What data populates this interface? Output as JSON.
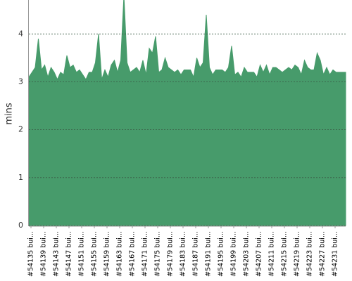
{
  "chart_data": {
    "type": "area",
    "y_label": "mins",
    "categories": [
      "#54135 bui...",
      null,
      null,
      null,
      "#54139 bui...",
      null,
      null,
      null,
      "#54143 bui...",
      null,
      null,
      null,
      "#54147 bui...",
      null,
      null,
      null,
      "#54151 bui...",
      null,
      null,
      null,
      "#54155 bui...",
      null,
      null,
      null,
      "#54159 bui...",
      null,
      null,
      null,
      "#54163 bui...",
      null,
      null,
      null,
      "#54167 bui...",
      null,
      null,
      null,
      "#54171 bui...",
      null,
      null,
      null,
      "#54175 bui...",
      null,
      null,
      null,
      "#54179 bui...",
      null,
      null,
      null,
      "#54183 bui...",
      null,
      null,
      null,
      "#54187 bui...",
      null,
      null,
      null,
      "#54191 bui...",
      null,
      null,
      null,
      "#54195 bui...",
      null,
      null,
      null,
      "#54199 bui...",
      null,
      null,
      null,
      "#54203 bui...",
      null,
      null,
      null,
      "#54207 bui...",
      null,
      null,
      null,
      "#54211 bui...",
      null,
      null,
      null,
      "#54215 bui...",
      null,
      null,
      null,
      "#54219 bui...",
      null,
      null,
      null,
      "#54223 bui...",
      null,
      null,
      null,
      "#54227 bui...",
      null,
      null,
      null,
      "#54231 bui...",
      null,
      null,
      null,
      null
    ],
    "values": [
      3.1,
      3.2,
      3.3,
      3.9,
      3.25,
      3.35,
      3.1,
      3.3,
      3.2,
      3.05,
      3.2,
      3.15,
      3.55,
      3.3,
      3.35,
      3.2,
      3.25,
      3.15,
      3.05,
      3.2,
      3.2,
      3.4,
      4.0,
      3.05,
      3.25,
      3.1,
      3.35,
      3.45,
      3.2,
      3.45,
      4.8,
      3.4,
      3.2,
      3.25,
      3.3,
      3.2,
      3.45,
      3.15,
      3.7,
      3.6,
      3.95,
      3.2,
      3.25,
      3.5,
      3.3,
      3.25,
      3.2,
      3.25,
      3.15,
      3.25,
      3.25,
      3.25,
      3.1,
      3.5,
      3.3,
      3.4,
      4.4,
      3.3,
      3.15,
      3.25,
      3.25,
      3.25,
      3.2,
      3.3,
      3.75,
      3.15,
      3.2,
      3.1,
      3.3,
      3.2,
      3.2,
      3.2,
      3.1,
      3.35,
      3.2,
      3.35,
      3.15,
      3.3,
      3.3,
      3.25,
      3.2,
      3.25,
      3.3,
      3.25,
      3.35,
      3.3,
      3.15,
      3.45,
      3.3,
      3.25,
      3.25,
      3.6,
      3.45,
      3.15,
      3.3,
      3.15,
      3.25,
      3.2,
      3.2,
      3.2,
      3.2
    ],
    "color": "#479b6b",
    "ylim": [
      0,
      4.65
    ],
    "yticks": [
      0,
      1,
      2,
      3,
      4
    ],
    "grid": true
  }
}
